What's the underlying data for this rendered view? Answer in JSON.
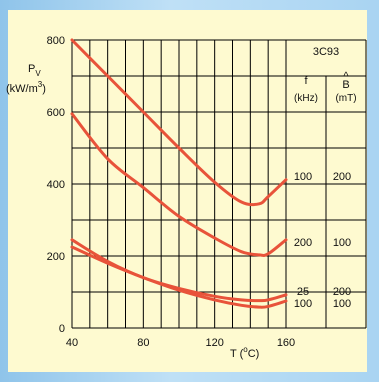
{
  "chart_data": {
    "type": "line",
    "x_ticks": [
      40,
      80,
      120,
      160
    ],
    "y_ticks": [
      0,
      200,
      400,
      600,
      800
    ],
    "xlim": [
      40,
      160
    ],
    "ylim": [
      0,
      800
    ],
    "grid": true,
    "color": "#e8533a",
    "ylabel": {
      "main": "P",
      "sub": "V",
      "unit_pre": "(kW/m",
      "unit_sup": "3",
      "unit_post": ")"
    },
    "xlabel": {
      "pre": "T  (",
      "sup": "o",
      "post": "C)"
    },
    "series": [
      {
        "f": "100",
        "b": "200",
        "x": [
          40,
          60,
          80,
          100,
          120,
          135,
          145,
          150,
          160
        ],
        "y": [
          800,
          700,
          600,
          500,
          405,
          350,
          345,
          365,
          412
        ]
      },
      {
        "f": "200",
        "b": "100",
        "x": [
          40,
          60,
          80,
          100,
          120,
          135,
          145,
          150,
          160
        ],
        "y": [
          595,
          470,
          390,
          310,
          250,
          212,
          203,
          206,
          245
        ]
      },
      {
        "f": "25",
        "b": "200",
        "x": [
          40,
          60,
          80,
          100,
          120,
          135,
          145,
          150,
          160
        ],
        "y": [
          245,
          185,
          140,
          110,
          88,
          78,
          76,
          78,
          92
        ]
      },
      {
        "f": "100",
        "b": "100",
        "x": [
          40,
          60,
          80,
          100,
          120,
          135,
          145,
          150,
          160
        ],
        "y": [
          225,
          180,
          140,
          105,
          78,
          63,
          58,
          60,
          75
        ]
      }
    ],
    "legend_table": {
      "material": "3C93",
      "col1": {
        "symbol": "f",
        "unit": "(kHz)"
      },
      "col2": {
        "symbol": "B",
        "hat": "^",
        "unit": "(mT)"
      }
    }
  }
}
